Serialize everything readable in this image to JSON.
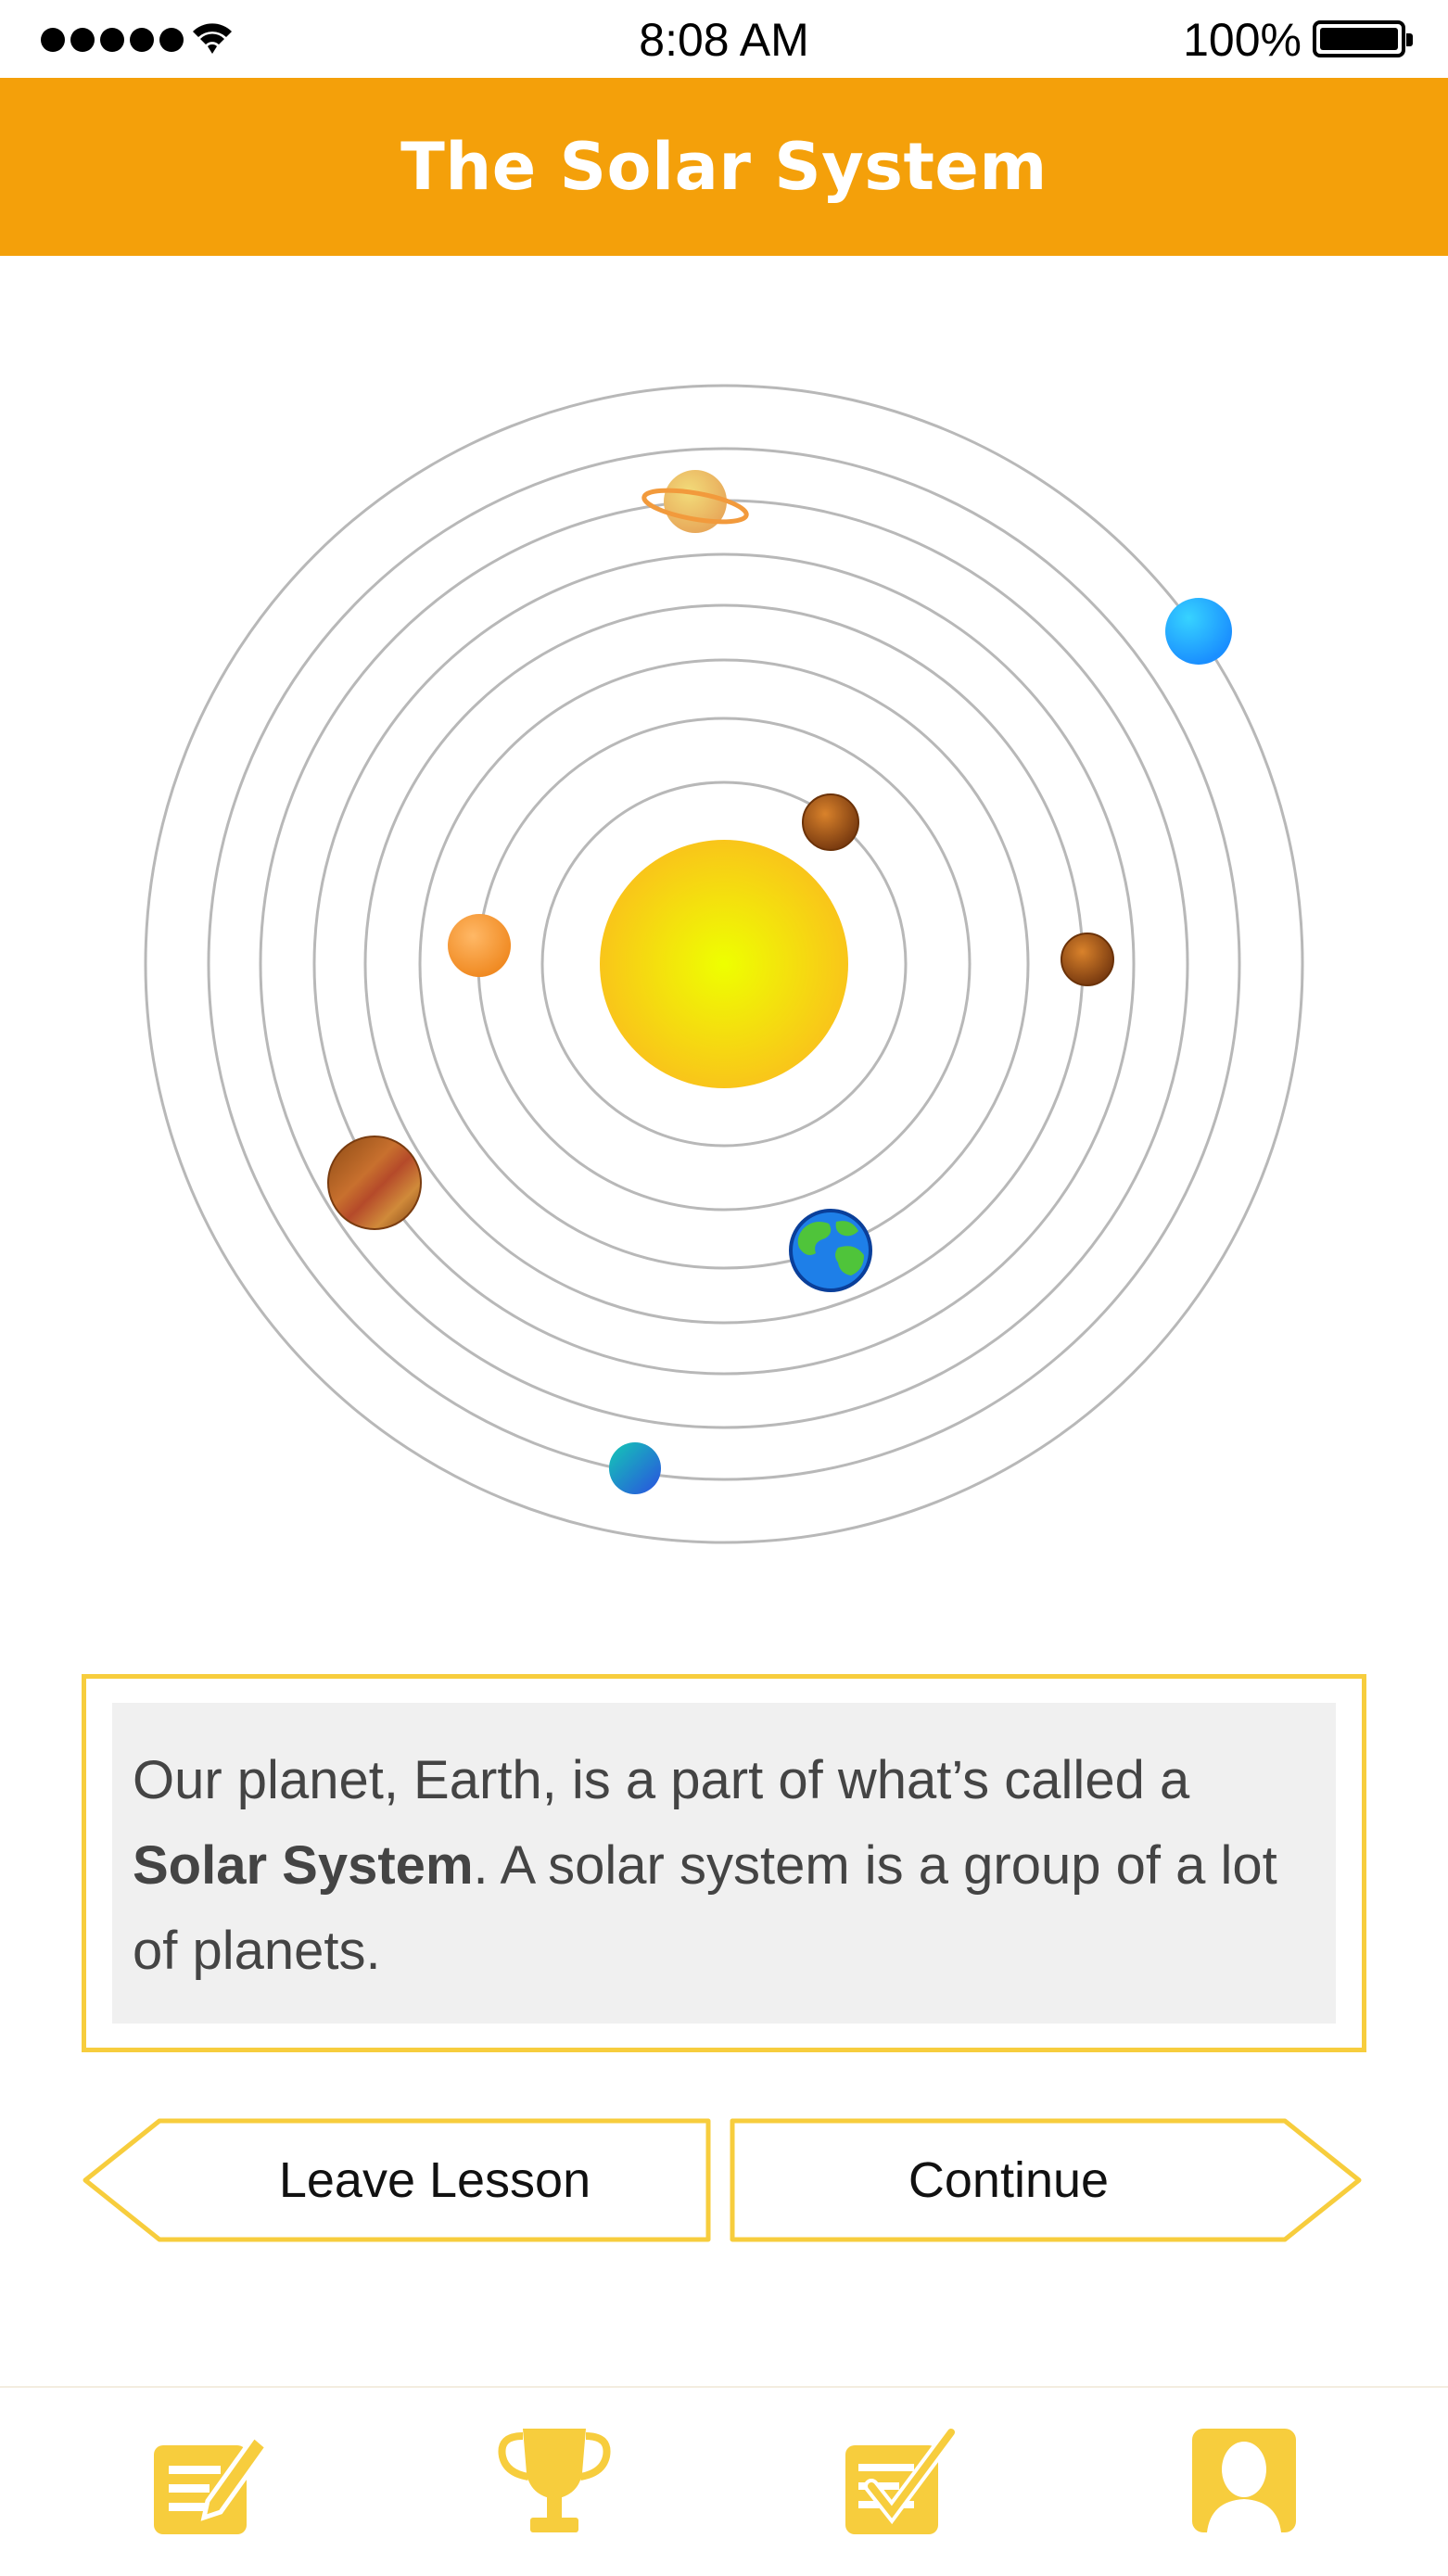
{
  "status_bar": {
    "time": "8:08 AM",
    "battery": "100%"
  },
  "header": {
    "title": "The Solar System"
  },
  "lesson": {
    "text_part1": "Our planet, Earth, is a part of what’s called a ",
    "text_bold": "Solar System",
    "text_part2": ". A solar system is a group of a lot of planets."
  },
  "buttons": {
    "leave_label": "Leave Lesson",
    "continue_label": "Continue"
  },
  "tabs": [
    {
      "icon": "lessons-icon"
    },
    {
      "icon": "trophy-icon"
    },
    {
      "icon": "quiz-icon"
    },
    {
      "icon": "profile-icon"
    }
  ],
  "colors": {
    "header": "#f4a00a",
    "accent": "#f7cd3d",
    "sun": "#f5d400"
  }
}
